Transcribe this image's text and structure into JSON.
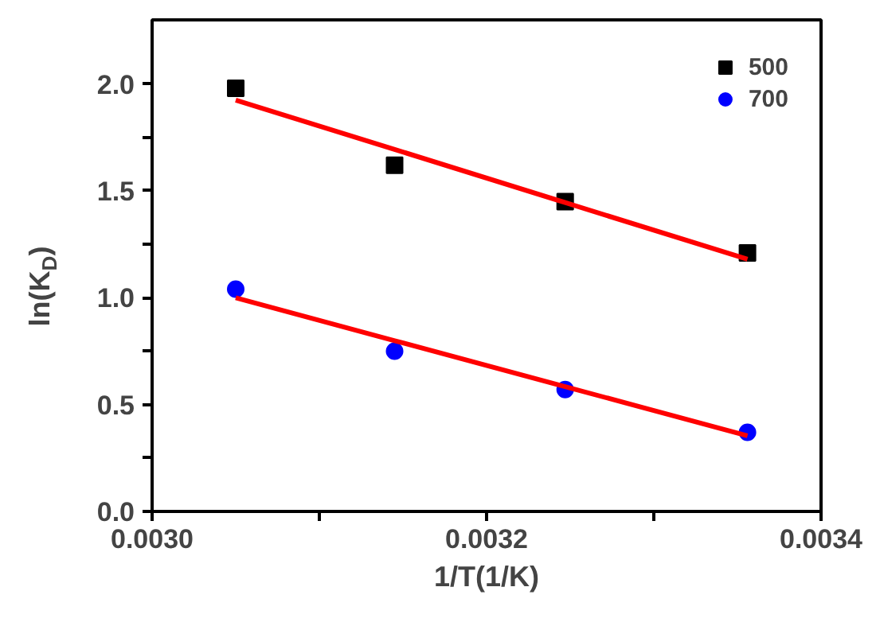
{
  "chart_data": {
    "type": "scatter",
    "xlabel": "1/T(1/K)",
    "ylabel": "ln(K$_{D}$)",
    "xlim": [
      0.003,
      0.0034
    ],
    "ylim": [
      0,
      2.3
    ],
    "xticks": [
      {
        "value": 0.003,
        "label": "0.0030"
      },
      {
        "value": 0.0031,
        "label": null
      },
      {
        "value": 0.0032,
        "label": "0.0032"
      },
      {
        "value": 0.0033,
        "label": null
      },
      {
        "value": 0.0034,
        "label": "0.0034"
      }
    ],
    "yticks": [
      {
        "value": 0,
        "label": "0.0"
      },
      {
        "value": 0.25,
        "label": null
      },
      {
        "value": 0.5,
        "label": "0.5"
      },
      {
        "value": 0.75,
        "label": null
      },
      {
        "value": 1.0,
        "label": "1.0"
      },
      {
        "value": 1.25,
        "label": null
      },
      {
        "value": 1.5,
        "label": "1.5"
      },
      {
        "value": 1.75,
        "label": null
      },
      {
        "value": 2.0,
        "label": "2.0"
      }
    ],
    "grid": false,
    "legend": "top right",
    "x": [
      0.00305,
      0.003145,
      0.003247,
      0.003356
    ],
    "series": [
      {
        "name": "500",
        "color": "#000000",
        "marker": "square",
        "values": [
          1.98,
          1.62,
          1.45,
          1.21
        ]
      },
      {
        "name": "700",
        "color": "#0000ff",
        "marker": "circle",
        "values": [
          1.04,
          0.75,
          0.57,
          0.37
        ]
      },
      {
        "type": "line",
        "color": "#ff0000",
        "values": [
          1.925,
          1.694,
          1.445,
          1.18
        ]
      },
      {
        "type": "line",
        "color": "#ff0000",
        "values": [
          1.0,
          0.799,
          0.584,
          0.354
        ]
      }
    ]
  }
}
